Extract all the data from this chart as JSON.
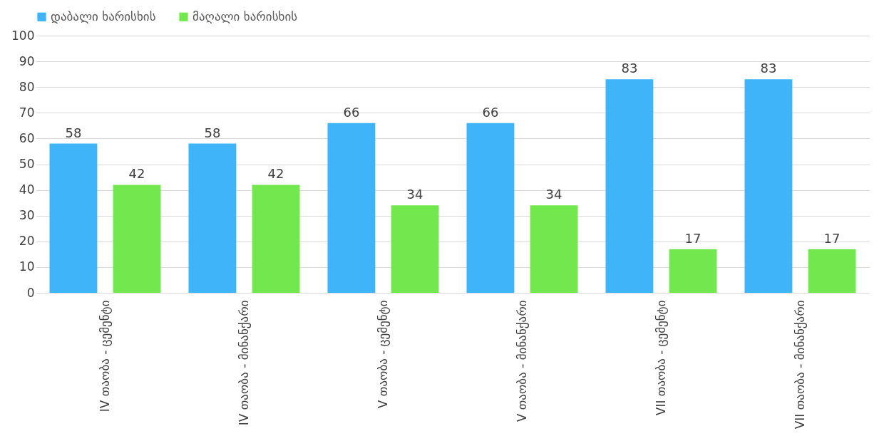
{
  "chart_data": {
    "type": "bar",
    "categories": [
      "IV თაობა - ცემენტი",
      "IV თაობა - მინანქარი",
      "V თაობა - ცემენტი",
      "V თაობა - მინანქარი",
      "VII თაობა - ცემენტი",
      "VII თაობა - მინანქარი"
    ],
    "series": [
      {
        "name": "დაბალი ხარისხის",
        "color": "#3fb4f8",
        "values": [
          58,
          58,
          66,
          66,
          83,
          83
        ]
      },
      {
        "name": "მაღალი ხარისხის",
        "color": "#72e84e",
        "values": [
          42,
          42,
          34,
          34,
          17,
          17
        ]
      }
    ],
    "ylim": [
      0,
      100
    ],
    "yticks": [
      0,
      10,
      20,
      30,
      40,
      50,
      60,
      70,
      80,
      90,
      100
    ],
    "grid": "y",
    "legend": "top",
    "data_labels": true
  }
}
